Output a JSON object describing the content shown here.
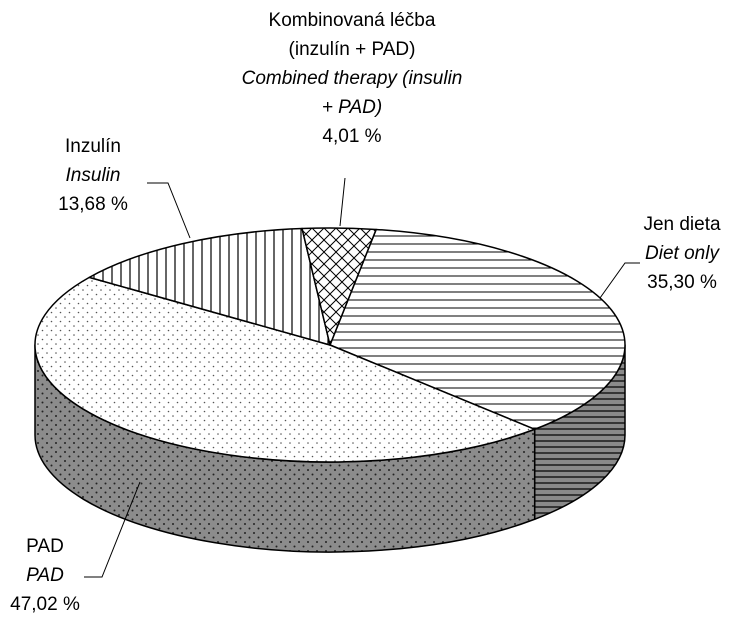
{
  "chart_data": {
    "type": "pie3d",
    "categories": [
      "Jen dieta",
      "PAD",
      "Inzulín",
      "Kombinovaná léčba (inzulín + PAD)"
    ],
    "category_translations": [
      "Diet only",
      "PAD",
      "Insulin",
      "Combined therapy (insulin + PAD)"
    ],
    "values": [
      35.3,
      47.02,
      13.68,
      4.01
    ],
    "value_labels": [
      "35,30 %",
      "47,02 %",
      "13,68 %",
      "4,01 %"
    ],
    "patterns": [
      "horizontal",
      "dots",
      "vertical",
      "crosshatch"
    ]
  }
}
